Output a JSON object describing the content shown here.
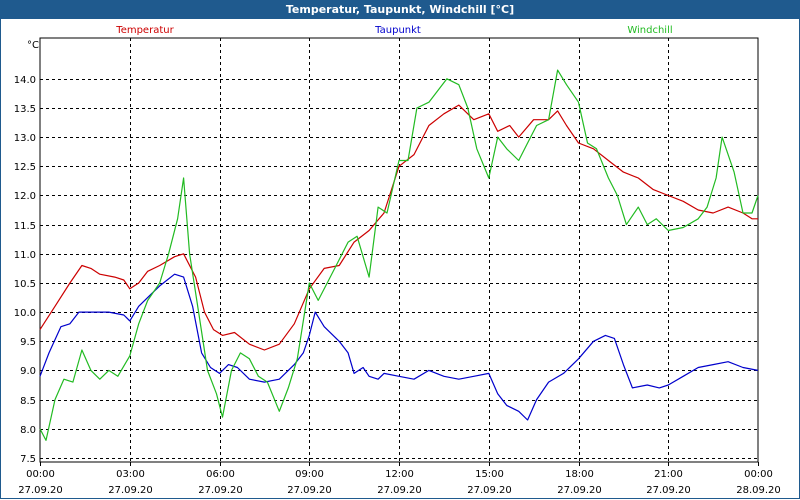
{
  "window": {
    "title": "Temperatur, Taupunkt, Windchill [°C]"
  },
  "chart_data": {
    "type": "line",
    "title": "Temperatur, Taupunkt, Windchill [°C]",
    "ylabel": "°C",
    "xlabel": "",
    "ylim": [
      7.43,
      14.7
    ],
    "xlim": [
      0,
      24
    ],
    "grid": true,
    "legend_position": "top",
    "yticks": [
      "7.5",
      "8.0",
      "8.5",
      "9.0",
      "9.5",
      "10.0",
      "10.5",
      "11.0",
      "11.5",
      "12.0",
      "12.5",
      "13.0",
      "13.5",
      "14.0"
    ],
    "xticks": [
      {
        "time": "00:00",
        "date": "27.09.20"
      },
      {
        "time": "03:00",
        "date": "27.09.20"
      },
      {
        "time": "06:00",
        "date": "27.09.20"
      },
      {
        "time": "09:00",
        "date": "27.09.20"
      },
      {
        "time": "12:00",
        "date": "27.09.20"
      },
      {
        "time": "15:00",
        "date": "27.09.20"
      },
      {
        "time": "18:00",
        "date": "27.09.20"
      },
      {
        "time": "21:00",
        "date": "27.09.20"
      },
      {
        "time": "00:00",
        "date": "28.09.20"
      }
    ],
    "series": [
      {
        "name": "Temperatur",
        "color": "#cc0000",
        "points": [
          [
            0,
            9.7
          ],
          [
            0.5,
            10.1
          ],
          [
            1,
            10.5
          ],
          [
            1.4,
            10.8
          ],
          [
            1.7,
            10.75
          ],
          [
            2,
            10.65
          ],
          [
            2.5,
            10.6
          ],
          [
            2.8,
            10.55
          ],
          [
            3,
            10.4
          ],
          [
            3.3,
            10.5
          ],
          [
            3.6,
            10.7
          ],
          [
            4,
            10.8
          ],
          [
            4.5,
            10.95
          ],
          [
            4.8,
            11.0
          ],
          [
            5.2,
            10.6
          ],
          [
            5.5,
            10.0
          ],
          [
            5.8,
            9.7
          ],
          [
            6.1,
            9.6
          ],
          [
            6.5,
            9.65
          ],
          [
            7,
            9.45
          ],
          [
            7.5,
            9.35
          ],
          [
            8,
            9.45
          ],
          [
            8.5,
            9.8
          ],
          [
            9,
            10.4
          ],
          [
            9.5,
            10.75
          ],
          [
            10,
            10.8
          ],
          [
            10.5,
            11.2
          ],
          [
            11,
            11.4
          ],
          [
            11.5,
            11.7
          ],
          [
            12,
            12.5
          ],
          [
            12.5,
            12.7
          ],
          [
            13,
            13.2
          ],
          [
            13.5,
            13.4
          ],
          [
            14,
            13.55
          ],
          [
            14.5,
            13.3
          ],
          [
            15,
            13.4
          ],
          [
            15.3,
            13.1
          ],
          [
            15.7,
            13.2
          ],
          [
            16,
            13.0
          ],
          [
            16.5,
            13.3
          ],
          [
            17,
            13.3
          ],
          [
            17.3,
            13.45
          ],
          [
            17.6,
            13.2
          ],
          [
            18,
            12.9
          ],
          [
            18.5,
            12.8
          ],
          [
            19,
            12.6
          ],
          [
            19.5,
            12.4
          ],
          [
            20,
            12.3
          ],
          [
            20.5,
            12.1
          ],
          [
            21,
            12.0
          ],
          [
            21.5,
            11.9
          ],
          [
            22,
            11.75
          ],
          [
            22.5,
            11.7
          ],
          [
            23,
            11.8
          ],
          [
            23.5,
            11.7
          ],
          [
            23.8,
            11.6
          ],
          [
            24,
            11.6
          ]
        ]
      },
      {
        "name": "Taupunkt",
        "color": "#0000cc",
        "points": [
          [
            0,
            8.9
          ],
          [
            0.3,
            9.3
          ],
          [
            0.7,
            9.75
          ],
          [
            1,
            9.8
          ],
          [
            1.3,
            10.0
          ],
          [
            1.8,
            10.0
          ],
          [
            2.3,
            10.0
          ],
          [
            2.8,
            9.95
          ],
          [
            3,
            9.85
          ],
          [
            3.3,
            10.1
          ],
          [
            3.7,
            10.3
          ],
          [
            4,
            10.45
          ],
          [
            4.5,
            10.65
          ],
          [
            4.8,
            10.6
          ],
          [
            5.1,
            10.1
          ],
          [
            5.4,
            9.3
          ],
          [
            5.7,
            9.05
          ],
          [
            6,
            8.95
          ],
          [
            6.3,
            9.1
          ],
          [
            6.6,
            9.05
          ],
          [
            7,
            8.85
          ],
          [
            7.5,
            8.8
          ],
          [
            8,
            8.85
          ],
          [
            8.5,
            9.1
          ],
          [
            8.8,
            9.3
          ],
          [
            9,
            9.6
          ],
          [
            9.2,
            10.0
          ],
          [
            9.5,
            9.75
          ],
          [
            10,
            9.5
          ],
          [
            10.3,
            9.3
          ],
          [
            10.5,
            8.95
          ],
          [
            10.8,
            9.05
          ],
          [
            11,
            8.9
          ],
          [
            11.3,
            8.85
          ],
          [
            11.5,
            8.95
          ],
          [
            12,
            8.9
          ],
          [
            12.5,
            8.85
          ],
          [
            13,
            9.0
          ],
          [
            13.5,
            8.9
          ],
          [
            14,
            8.85
          ],
          [
            14.5,
            8.9
          ],
          [
            15,
            8.95
          ],
          [
            15.3,
            8.6
          ],
          [
            15.6,
            8.4
          ],
          [
            16,
            8.3
          ],
          [
            16.3,
            8.15
          ],
          [
            16.6,
            8.5
          ],
          [
            17,
            8.8
          ],
          [
            17.5,
            8.95
          ],
          [
            18,
            9.2
          ],
          [
            18.5,
            9.5
          ],
          [
            18.9,
            9.6
          ],
          [
            19.2,
            9.55
          ],
          [
            19.5,
            9.1
          ],
          [
            19.8,
            8.7
          ],
          [
            20.3,
            8.75
          ],
          [
            20.7,
            8.7
          ],
          [
            21,
            8.75
          ],
          [
            21.5,
            8.9
          ],
          [
            22,
            9.05
          ],
          [
            22.5,
            9.1
          ],
          [
            23,
            9.15
          ],
          [
            23.5,
            9.05
          ],
          [
            24,
            9.0
          ]
        ]
      },
      {
        "name": "Windchill",
        "color": "#22bb22",
        "points": [
          [
            0,
            8.0
          ],
          [
            0.2,
            7.8
          ],
          [
            0.5,
            8.5
          ],
          [
            0.8,
            8.85
          ],
          [
            1.1,
            8.8
          ],
          [
            1.4,
            9.35
          ],
          [
            1.7,
            9.0
          ],
          [
            2,
            8.85
          ],
          [
            2.3,
            9.0
          ],
          [
            2.6,
            8.9
          ],
          [
            3,
            9.25
          ],
          [
            3.3,
            9.8
          ],
          [
            3.6,
            10.2
          ],
          [
            4,
            10.5
          ],
          [
            4.3,
            11.0
          ],
          [
            4.6,
            11.6
          ],
          [
            4.8,
            12.3
          ],
          [
            5,
            11.0
          ],
          [
            5.3,
            10.0
          ],
          [
            5.6,
            9.0
          ],
          [
            5.9,
            8.6
          ],
          [
            6.1,
            8.2
          ],
          [
            6.4,
            9.0
          ],
          [
            6.7,
            9.3
          ],
          [
            7,
            9.2
          ],
          [
            7.3,
            8.9
          ],
          [
            7.6,
            8.8
          ],
          [
            8,
            8.3
          ],
          [
            8.3,
            8.7
          ],
          [
            8.6,
            9.2
          ],
          [
            9,
            10.5
          ],
          [
            9.3,
            10.2
          ],
          [
            9.6,
            10.5
          ],
          [
            10,
            10.9
          ],
          [
            10.3,
            11.2
          ],
          [
            10.6,
            11.3
          ],
          [
            11,
            10.6
          ],
          [
            11.3,
            11.8
          ],
          [
            11.6,
            11.7
          ],
          [
            12,
            12.6
          ],
          [
            12.3,
            12.6
          ],
          [
            12.6,
            13.5
          ],
          [
            13,
            13.6
          ],
          [
            13.3,
            13.8
          ],
          [
            13.6,
            14.0
          ],
          [
            14,
            13.9
          ],
          [
            14.3,
            13.5
          ],
          [
            14.6,
            12.8
          ],
          [
            15,
            12.3
          ],
          [
            15.3,
            13.0
          ],
          [
            15.6,
            12.8
          ],
          [
            16,
            12.6
          ],
          [
            16.3,
            12.9
          ],
          [
            16.6,
            13.2
          ],
          [
            17,
            13.3
          ],
          [
            17.3,
            14.15
          ],
          [
            17.6,
            13.9
          ],
          [
            18,
            13.6
          ],
          [
            18.3,
            12.9
          ],
          [
            18.6,
            12.8
          ],
          [
            19,
            12.3
          ],
          [
            19.3,
            12.0
          ],
          [
            19.6,
            11.5
          ],
          [
            20,
            11.8
          ],
          [
            20.3,
            11.5
          ],
          [
            20.6,
            11.6
          ],
          [
            21,
            11.4
          ],
          [
            21.5,
            11.45
          ],
          [
            22,
            11.6
          ],
          [
            22.3,
            11.8
          ],
          [
            22.6,
            12.3
          ],
          [
            22.8,
            13.0
          ],
          [
            23,
            12.7
          ],
          [
            23.2,
            12.4
          ],
          [
            23.5,
            11.7
          ],
          [
            23.8,
            11.7
          ],
          [
            24,
            12.0
          ]
        ]
      }
    ]
  }
}
